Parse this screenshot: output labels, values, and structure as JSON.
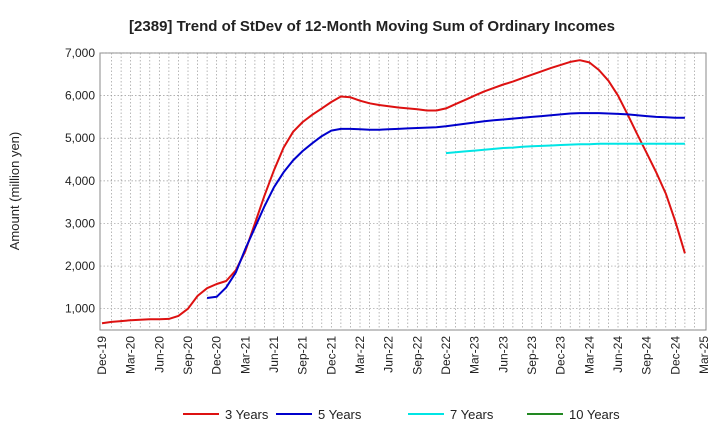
{
  "chart_data": {
    "type": "line",
    "title": "[2389]  Trend of StDev of 12-Month Moving Sum of Ordinary Incomes",
    "ylabel": "Amount (million yen)",
    "xlabel": "",
    "ylim": [
      500,
      7000
    ],
    "yticks": [
      1000,
      2000,
      3000,
      4000,
      5000,
      6000,
      7000
    ],
    "ytick_labels": [
      "1,000",
      "2,000",
      "3,000",
      "4,000",
      "5,000",
      "6,000",
      "7,000"
    ],
    "xticks": [
      "Dec-19",
      "Mar-20",
      "Jun-20",
      "Sep-20",
      "Dec-20",
      "Mar-21",
      "Jun-21",
      "Sep-21",
      "Dec-21",
      "Mar-22",
      "Jun-22",
      "Sep-22",
      "Dec-22",
      "Mar-23",
      "Jun-23",
      "Sep-23",
      "Dec-23",
      "Mar-24",
      "Jun-24",
      "Sep-24",
      "Dec-24",
      "Mar-25"
    ],
    "x_months": [
      "2019-12",
      "2020-01",
      "2020-02",
      "2020-03",
      "2020-04",
      "2020-05",
      "2020-06",
      "2020-07",
      "2020-08",
      "2020-09",
      "2020-10",
      "2020-11",
      "2020-12",
      "2021-01",
      "2021-02",
      "2021-03",
      "2021-04",
      "2021-05",
      "2021-06",
      "2021-07",
      "2021-08",
      "2021-09",
      "2021-10",
      "2021-11",
      "2021-12",
      "2022-01",
      "2022-02",
      "2022-03",
      "2022-04",
      "2022-05",
      "2022-06",
      "2022-07",
      "2022-08",
      "2022-09",
      "2022-10",
      "2022-11",
      "2022-12",
      "2023-01",
      "2023-02",
      "2023-03",
      "2023-04",
      "2023-05",
      "2023-06",
      "2023-07",
      "2023-08",
      "2023-09",
      "2023-10",
      "2023-11",
      "2023-12",
      "2024-01",
      "2024-02",
      "2024-03",
      "2024-04",
      "2024-05",
      "2024-06",
      "2024-07",
      "2024-08",
      "2024-09",
      "2024-10",
      "2024-11",
      "2024-12",
      "2025-01",
      "2025-02",
      "2025-03"
    ],
    "grid": true,
    "legend_position": "bottom",
    "series": [
      {
        "name": "3 Years",
        "color": "#dd1111",
        "values": [
          660,
          690,
          710,
          730,
          740,
          750,
          750,
          760,
          830,
          1000,
          1300,
          1480,
          1580,
          1650,
          1900,
          2350,
          3000,
          3650,
          4250,
          4780,
          5150,
          5380,
          5550,
          5700,
          5850,
          5980,
          5960,
          5880,
          5820,
          5780,
          5750,
          5720,
          5700,
          5680,
          5650,
          5650,
          5700,
          5800,
          5900,
          6000,
          6100,
          6180,
          6260,
          6330,
          6410,
          6490,
          6570,
          6650,
          6720,
          6790,
          6830,
          6780,
          6600,
          6350,
          6000,
          5560,
          5100,
          4650,
          4200,
          3700,
          3050,
          2300,
          null,
          null
        ]
      },
      {
        "name": "5 Years",
        "color": "#0000cc",
        "values": [
          null,
          null,
          null,
          null,
          null,
          null,
          null,
          null,
          null,
          null,
          null,
          1250,
          1280,
          1500,
          1850,
          2400,
          2900,
          3400,
          3850,
          4200,
          4480,
          4700,
          4880,
          5050,
          5180,
          5220,
          5220,
          5210,
          5200,
          5200,
          5210,
          5220,
          5230,
          5240,
          5250,
          5260,
          5280,
          5310,
          5340,
          5370,
          5400,
          5420,
          5440,
          5460,
          5480,
          5500,
          5520,
          5540,
          5560,
          5580,
          5590,
          5590,
          5590,
          5580,
          5570,
          5560,
          5540,
          5520,
          5500,
          5490,
          5480,
          5480,
          null,
          null
        ]
      },
      {
        "name": "7 Years",
        "color": "#00e5e5",
        "values": [
          null,
          null,
          null,
          null,
          null,
          null,
          null,
          null,
          null,
          null,
          null,
          null,
          null,
          null,
          null,
          null,
          null,
          null,
          null,
          null,
          null,
          null,
          null,
          null,
          null,
          null,
          null,
          null,
          null,
          null,
          null,
          null,
          null,
          null,
          null,
          null,
          4650,
          4670,
          4690,
          4710,
          4730,
          4750,
          4770,
          4780,
          4800,
          4810,
          4820,
          4830,
          4840,
          4850,
          4860,
          4860,
          4870,
          4870,
          4870,
          4870,
          4870,
          4870,
          4870,
          4870,
          4870,
          4870,
          null,
          null
        ]
      },
      {
        "name": "10 Years",
        "color": "#228822",
        "values": []
      }
    ]
  }
}
